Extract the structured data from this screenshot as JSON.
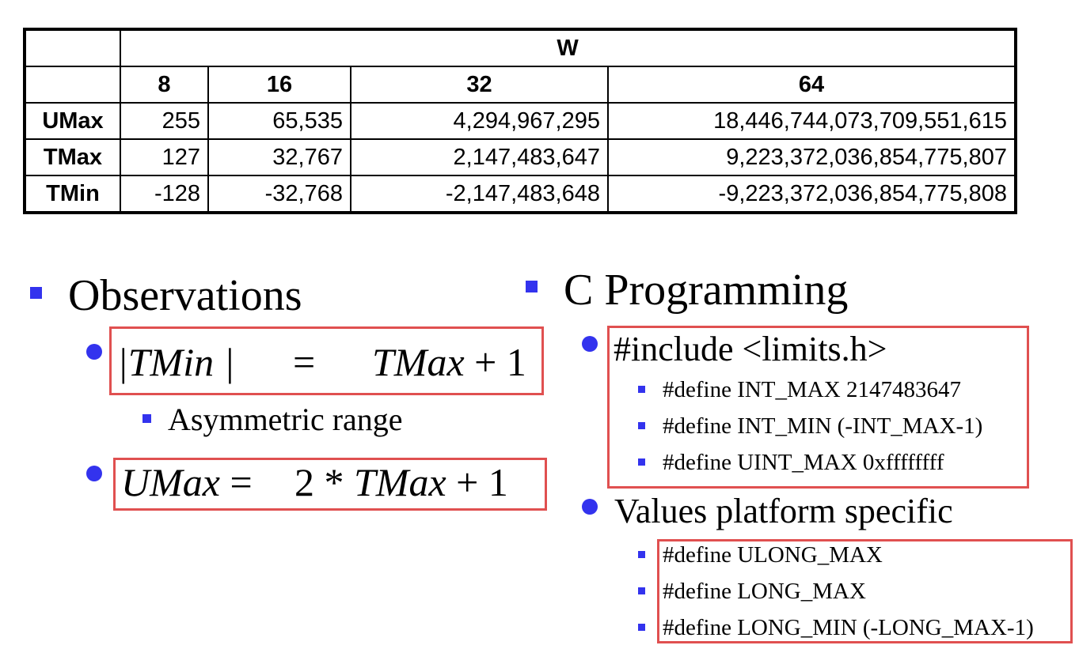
{
  "table": {
    "group_header": "W",
    "columns": [
      "8",
      "16",
      "32",
      "64"
    ],
    "rows": [
      {
        "label": "UMax",
        "values": [
          "255",
          "65,535",
          "4,294,967,295",
          "18,446,744,073,709,551,615"
        ]
      },
      {
        "label": "TMax",
        "values": [
          "127",
          "32,767",
          "2,147,483,647",
          "9,223,372,036,854,775,807"
        ]
      },
      {
        "label": "TMin",
        "values": [
          "-128",
          "-32,768",
          "-2,147,483,648",
          "-9,223,372,036,854,775,808"
        ]
      }
    ]
  },
  "observations": {
    "title": "Observations",
    "eq1": {
      "left": "|TMin |",
      "eq": "=",
      "right_var": "TMax",
      "right_rest": "+ 1"
    },
    "eq1_sub": "Asymmetric range",
    "eq2": {
      "left": "UMax",
      "eq": "=",
      "mid": "2 *",
      "var": "TMax",
      "rest": "+ 1"
    }
  },
  "c_programming": {
    "title": "C Programming",
    "include": "#include <limits.h>",
    "defines": [
      "#define INT_MAX 2147483647",
      "#define INT_MIN (-INT_MAX-1)",
      "#define UINT_MAX 0xffffffff"
    ],
    "platform_title": "Values platform specific",
    "platform_defines": [
      "#define ULONG_MAX",
      "#define LONG_MAX",
      "#define LONG_MIN (-LONG_MAX-1)"
    ]
  },
  "colors": {
    "bullet": "#3333ee",
    "highlight_box": "#e05050"
  }
}
